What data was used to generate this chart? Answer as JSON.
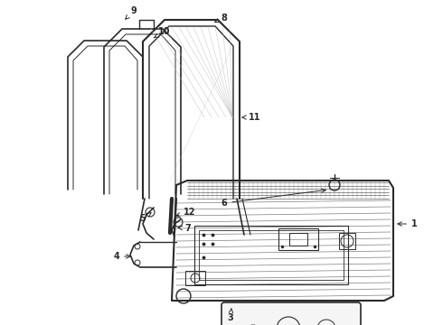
{
  "bg_color": "#ffffff",
  "line_color": "#2a2a2a",
  "gray_color": "#888888",
  "light_gray": "#bbbbbb",
  "figsize": [
    4.9,
    3.6
  ],
  "dpi": 100,
  "label_fontsize": 7.0
}
